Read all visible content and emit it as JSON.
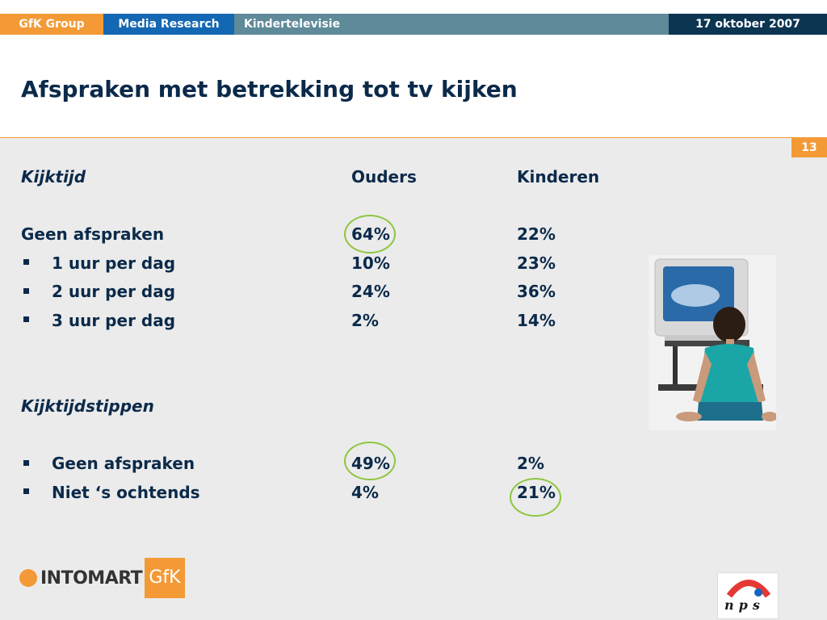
{
  "header": {
    "brand": "GfK Group",
    "section": "Media Research",
    "topic": "Kindertelevisie",
    "date": "17 oktober 2007"
  },
  "title": "Afspraken met betrekking tot tv kijken",
  "page_number": "13",
  "table": {
    "col_ouders": "Ouders",
    "col_kinderen": "Kinderen",
    "section1": {
      "heading": "Kijktijd",
      "rows": [
        {
          "label": "Geen afspraken",
          "ouders": "64%",
          "kinderen": "22%"
        },
        {
          "label": "1 uur per dag",
          "ouders": "10%",
          "kinderen": "23%"
        },
        {
          "label": "2 uur per dag",
          "ouders": "24%",
          "kinderen": "36%"
        },
        {
          "label": "3 uur per dag",
          "ouders": "2%",
          "kinderen": "14%"
        }
      ]
    },
    "section2": {
      "heading": "Kijktijdstippen",
      "rows": [
        {
          "label": "Geen afspraken",
          "ouders": "49%",
          "kinderen": "2%"
        },
        {
          "label": "Niet ‘s ochtends",
          "ouders": "4%",
          "kinderen": "21%"
        }
      ]
    }
  },
  "logos": {
    "intomart": "INTOMART",
    "gfk": "GfK",
    "nps": "nps"
  },
  "colors": {
    "orange": "#f39a37",
    "blue": "#1468b3",
    "teal": "#5e8a9a",
    "navy": "#0c3552",
    "highlight_circle": "#8dc63f"
  }
}
